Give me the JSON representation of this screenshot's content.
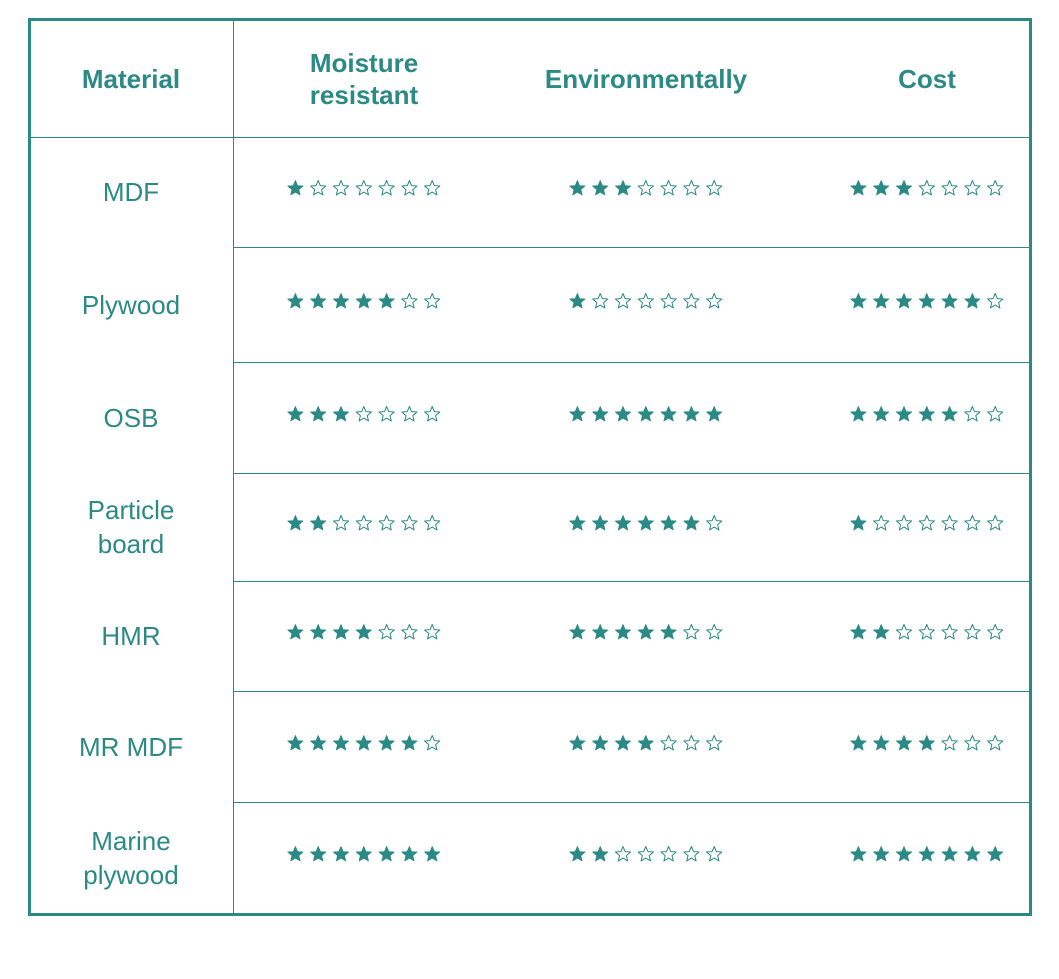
{
  "table": {
    "header": [
      "Material",
      "Moisture resistant",
      "Environmentally",
      "Cost"
    ],
    "stars_out_of": 7,
    "rows": [
      [
        "MDF",
        1,
        3,
        3
      ],
      [
        "Plywood",
        5,
        1,
        6
      ],
      [
        "OSB",
        3,
        7,
        5
      ],
      [
        "Particle board",
        2,
        6,
        1
      ],
      [
        "HMR",
        4,
        5,
        2
      ],
      [
        "MR MDF",
        6,
        4,
        4
      ],
      [
        "Marine plywood",
        7,
        2,
        7
      ]
    ]
  }
}
